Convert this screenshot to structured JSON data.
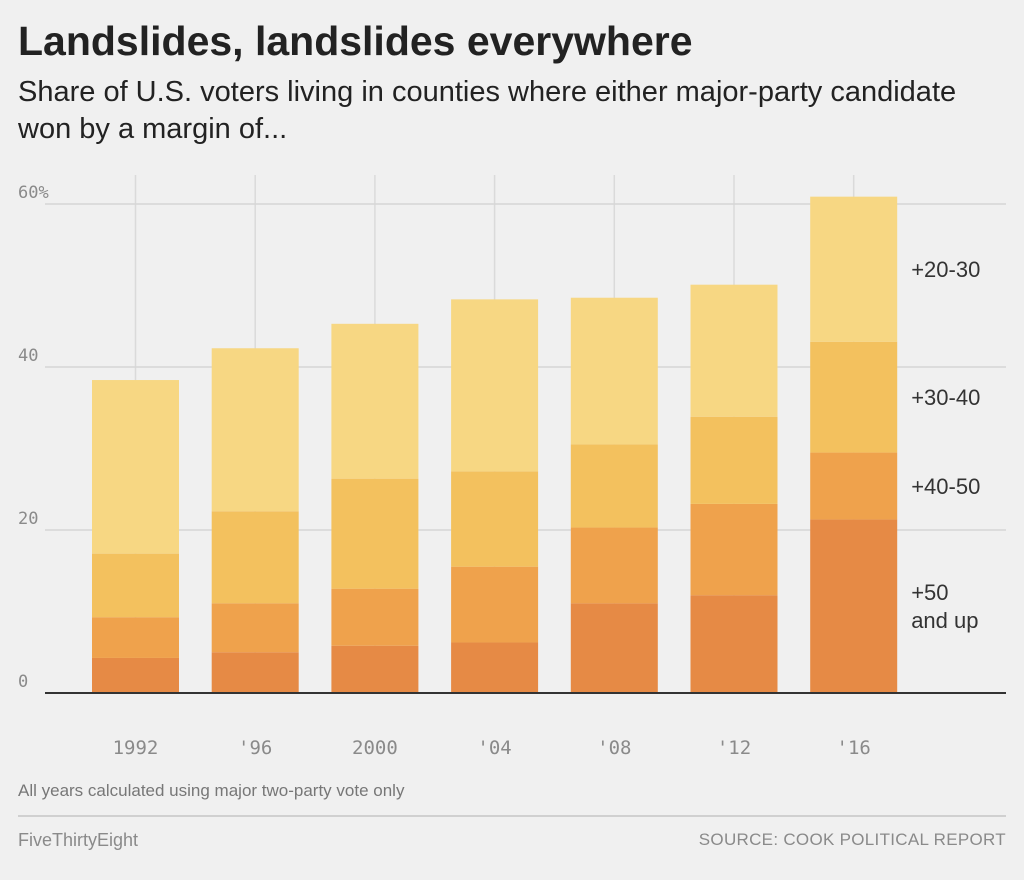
{
  "header": {
    "title": "Landslides, landslides everywhere",
    "subtitle": "Share of U.S. voters living in counties where either major-party candidate won by a margin of..."
  },
  "chart_data": {
    "type": "bar",
    "stacked": true,
    "categories": [
      "1992",
      "'96",
      "2000",
      "'04",
      "'08",
      "'12",
      "'16"
    ],
    "y_ticks": [
      "0",
      "20",
      "40",
      "60%"
    ],
    "y_tick_values": [
      0,
      20,
      40,
      60
    ],
    "ylim": [
      0,
      60
    ],
    "grid": true,
    "series": [
      {
        "name": "+50 and up",
        "label_lines": [
          "+50",
          "and up"
        ],
        "color": "#e68a45",
        "values": [
          4.3,
          5.0,
          5.8,
          6.2,
          11.0,
          12.0,
          21.3
        ]
      },
      {
        "name": "+40-50",
        "label_lines": [
          "+40-50"
        ],
        "color": "#efa24c",
        "values": [
          5.0,
          6.0,
          7.0,
          9.3,
          9.3,
          11.2,
          8.2
        ]
      },
      {
        "name": "+30-40",
        "label_lines": [
          "+30-40"
        ],
        "color": "#f3c15e",
        "values": [
          7.8,
          11.3,
          13.5,
          11.7,
          10.2,
          10.7,
          13.6
        ]
      },
      {
        "name": "+20-30",
        "label_lines": [
          "+20-30"
        ],
        "color": "#f7d783",
        "values": [
          21.3,
          20.0,
          19.0,
          21.1,
          18.0,
          16.2,
          17.8
        ]
      }
    ],
    "legend_placement": "right, inline with 2016 bar segments"
  },
  "footer": {
    "note": "All years calculated using major two-party vote only",
    "brand": "FiveThirtyEight",
    "source": "SOURCE: COOK POLITICAL REPORT"
  }
}
